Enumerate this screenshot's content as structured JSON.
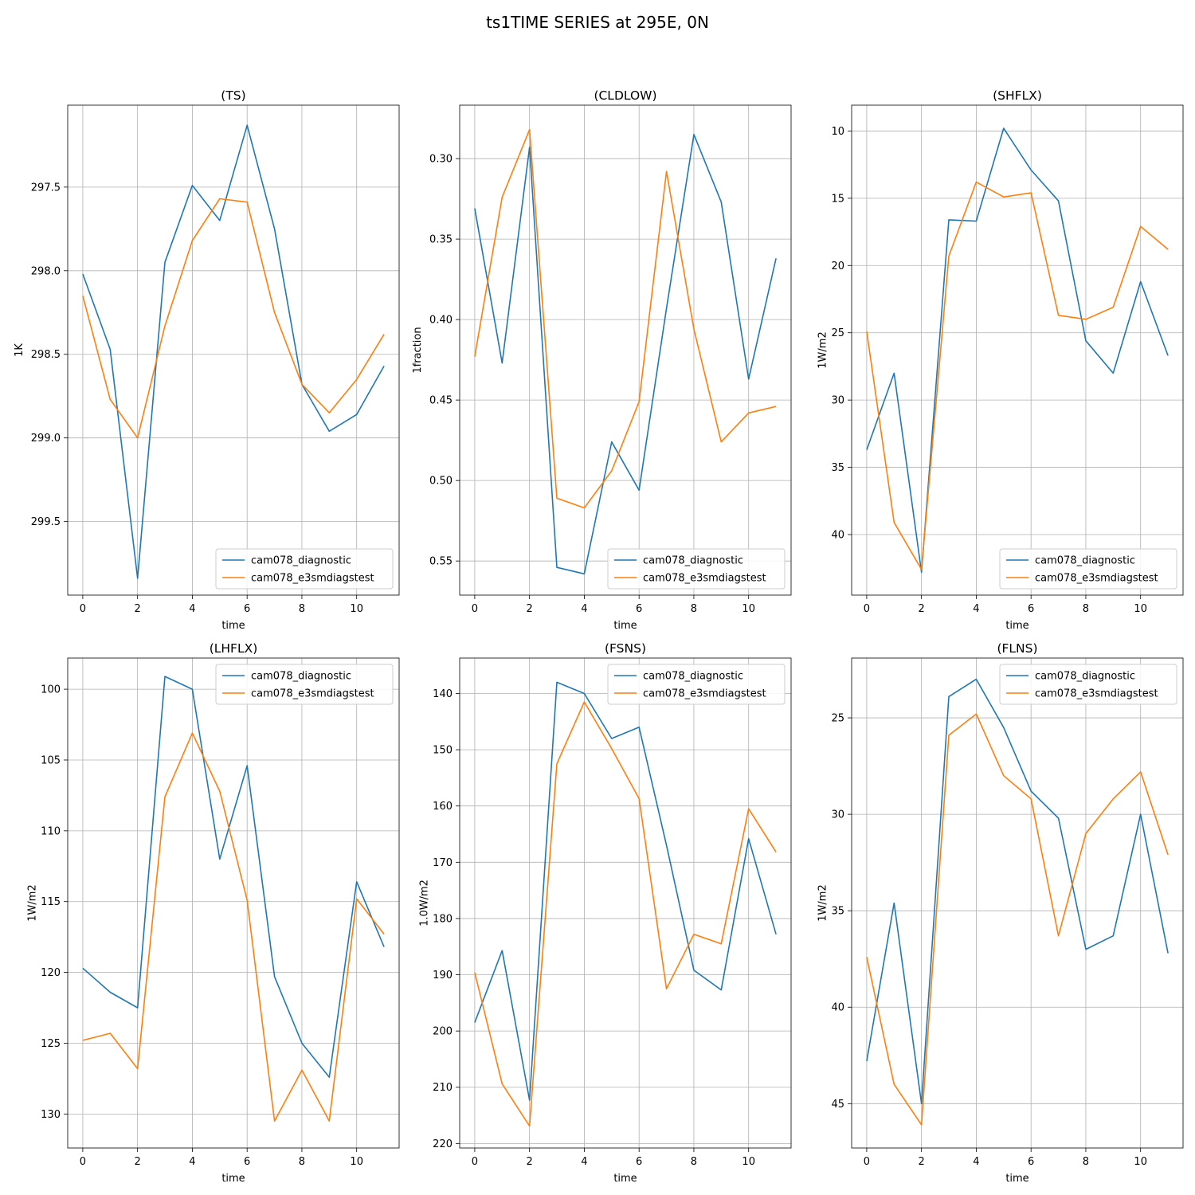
{
  "figure": {
    "title": "ts1TIME SERIES at 295E, 0N"
  },
  "colors": {
    "series_1": "#1f77b4",
    "series_2": "#ff7f0e",
    "grid": "#b0b0b0"
  },
  "chart_data": [
    {
      "type": "line",
      "title": "(TS)",
      "xlabel": "time",
      "ylabel": "1K",
      "x": [
        0,
        1,
        2,
        3,
        4,
        5,
        6,
        7,
        8,
        9,
        10,
        11
      ],
      "xticks": [
        0,
        2,
        4,
        6,
        8,
        10
      ],
      "xlim": [
        -0.55,
        11.55
      ],
      "yticks": [
        297.5,
        298.0,
        298.5,
        299.0,
        299.5
      ],
      "ytick_labels": [
        "297.5",
        "298.0",
        "298.5",
        "299.0",
        "299.5"
      ],
      "ylim": [
        297.01,
        299.94
      ],
      "y_inverted": true,
      "grid": true,
      "legend": "lower-right",
      "series": [
        {
          "name": "cam078_diagnostic",
          "values": [
            298.02,
            298.47,
            299.84,
            297.95,
            297.49,
            297.7,
            297.13,
            297.75,
            298.68,
            298.96,
            298.86,
            298.57
          ]
        },
        {
          "name": "cam078_e3smdiagstest",
          "values": [
            298.15,
            298.77,
            299.0,
            298.33,
            297.82,
            297.57,
            297.59,
            298.25,
            298.68,
            298.85,
            298.65,
            298.38
          ]
        }
      ]
    },
    {
      "type": "line",
      "title": "(CLDLOW)",
      "xlabel": "time",
      "ylabel": "1fraction",
      "x": [
        0,
        1,
        2,
        3,
        4,
        5,
        6,
        7,
        8,
        9,
        10,
        11
      ],
      "xticks": [
        0,
        2,
        4,
        6,
        8,
        10
      ],
      "xlim": [
        -0.55,
        11.55
      ],
      "yticks": [
        0.3,
        0.35,
        0.4,
        0.45,
        0.5,
        0.55
      ],
      "ytick_labels": [
        "0.30",
        "0.35",
        "0.40",
        "0.45",
        "0.50",
        "0.55"
      ],
      "ylim": [
        0.2668,
        0.5712
      ],
      "y_inverted": true,
      "grid": true,
      "legend": "lower-right",
      "series": [
        {
          "name": "cam078_diagnostic",
          "values": [
            0.331,
            0.427,
            0.293,
            0.554,
            0.558,
            0.476,
            0.506,
            0.393,
            0.285,
            0.327,
            0.437,
            0.362
          ]
        },
        {
          "name": "cam078_e3smdiagstest",
          "values": [
            0.423,
            0.324,
            0.282,
            0.511,
            0.517,
            0.494,
            0.451,
            0.308,
            0.406,
            0.476,
            0.458,
            0.454
          ]
        }
      ]
    },
    {
      "type": "line",
      "title": "(SHFLX)",
      "xlabel": "time",
      "ylabel": "1W/m2",
      "x": [
        0,
        1,
        2,
        3,
        4,
        5,
        6,
        7,
        8,
        9,
        10,
        11
      ],
      "xticks": [
        0,
        2,
        4,
        6,
        8,
        10
      ],
      "xlim": [
        -0.55,
        11.55
      ],
      "yticks": [
        10,
        15,
        20,
        25,
        30,
        35,
        40
      ],
      "ytick_labels": [
        "10",
        "15",
        "20",
        "25",
        "30",
        "35",
        "40"
      ],
      "ylim": [
        8.08,
        44.5
      ],
      "y_inverted": true,
      "grid": true,
      "legend": "lower-right",
      "series": [
        {
          "name": "cam078_diagnostic",
          "values": [
            33.7,
            28.0,
            42.8,
            16.6,
            16.7,
            9.8,
            12.9,
            15.2,
            25.6,
            28.0,
            21.2,
            26.7
          ]
        },
        {
          "name": "cam078_e3smdiagstest",
          "values": [
            24.9,
            39.1,
            42.6,
            19.3,
            13.8,
            14.9,
            14.6,
            23.7,
            24.0,
            23.1,
            17.1,
            18.8
          ]
        }
      ]
    },
    {
      "type": "line",
      "title": "(LHFLX)",
      "xlabel": "time",
      "ylabel": "1W/m2",
      "x": [
        0,
        1,
        2,
        3,
        4,
        5,
        6,
        7,
        8,
        9,
        10,
        11
      ],
      "xticks": [
        0,
        2,
        4,
        6,
        8,
        10
      ],
      "xlim": [
        -0.55,
        11.55
      ],
      "yticks": [
        100,
        105,
        110,
        115,
        120,
        125,
        130
      ],
      "ytick_labels": [
        "100",
        "105",
        "110",
        "115",
        "120",
        "125",
        "130"
      ],
      "ylim": [
        97.8,
        132.4
      ],
      "y_inverted": true,
      "grid": true,
      "legend": "upper-right",
      "series": [
        {
          "name": "cam078_diagnostic",
          "values": [
            119.7,
            121.4,
            122.5,
            99.1,
            100.0,
            112.0,
            105.4,
            120.3,
            125.0,
            127.4,
            113.6,
            118.2
          ]
        },
        {
          "name": "cam078_e3smdiagstest",
          "values": [
            124.8,
            124.3,
            126.8,
            107.6,
            103.1,
            107.2,
            114.9,
            130.5,
            126.9,
            130.5,
            114.8,
            117.3
          ]
        }
      ]
    },
    {
      "type": "line",
      "title": "(FSNS)",
      "xlabel": "time",
      "ylabel": "1.0W/m2",
      "x": [
        0,
        1,
        2,
        3,
        4,
        5,
        6,
        7,
        8,
        9,
        10,
        11
      ],
      "xticks": [
        0,
        2,
        4,
        6,
        8,
        10
      ],
      "xlim": [
        -0.55,
        11.55
      ],
      "yticks": [
        140,
        150,
        160,
        170,
        180,
        190,
        200,
        210,
        220
      ],
      "ytick_labels": [
        "140",
        "150",
        "160",
        "170",
        "180",
        "190",
        "200",
        "210",
        "220"
      ],
      "ylim": [
        133.7,
        220.8
      ],
      "y_inverted": true,
      "grid": true,
      "legend": "upper-right",
      "series": [
        {
          "name": "cam078_diagnostic",
          "values": [
            198.5,
            185.7,
            212.3,
            138.0,
            140.0,
            148.0,
            146.0,
            167.0,
            189.2,
            192.7,
            165.8,
            182.8
          ]
        },
        {
          "name": "cam078_e3smdiagstest",
          "values": [
            189.6,
            209.4,
            216.9,
            152.5,
            141.5,
            149.8,
            158.7,
            192.5,
            182.8,
            184.5,
            160.5,
            168.2
          ]
        }
      ]
    },
    {
      "type": "line",
      "title": "(FLNS)",
      "xlabel": "time",
      "ylabel": "1W/m2",
      "x": [
        0,
        1,
        2,
        3,
        4,
        5,
        6,
        7,
        8,
        9,
        10,
        11
      ],
      "xticks": [
        0,
        2,
        4,
        6,
        8,
        10
      ],
      "xlim": [
        -0.55,
        11.55
      ],
      "yticks": [
        25,
        30,
        35,
        40,
        45
      ],
      "ytick_labels": [
        "25",
        "30",
        "35",
        "40",
        "45"
      ],
      "ylim": [
        21.9,
        47.3
      ],
      "y_inverted": true,
      "grid": true,
      "legend": "upper-right",
      "series": [
        {
          "name": "cam078_diagnostic",
          "values": [
            42.8,
            34.6,
            45.0,
            23.9,
            23.0,
            25.5,
            28.8,
            30.2,
            37.0,
            36.3,
            30.0,
            37.2
          ]
        },
        {
          "name": "cam078_e3smdiagstest",
          "values": [
            37.4,
            44.0,
            46.1,
            25.9,
            24.8,
            28.0,
            29.2,
            36.3,
            31.0,
            29.2,
            27.8,
            32.1
          ]
        }
      ]
    }
  ]
}
